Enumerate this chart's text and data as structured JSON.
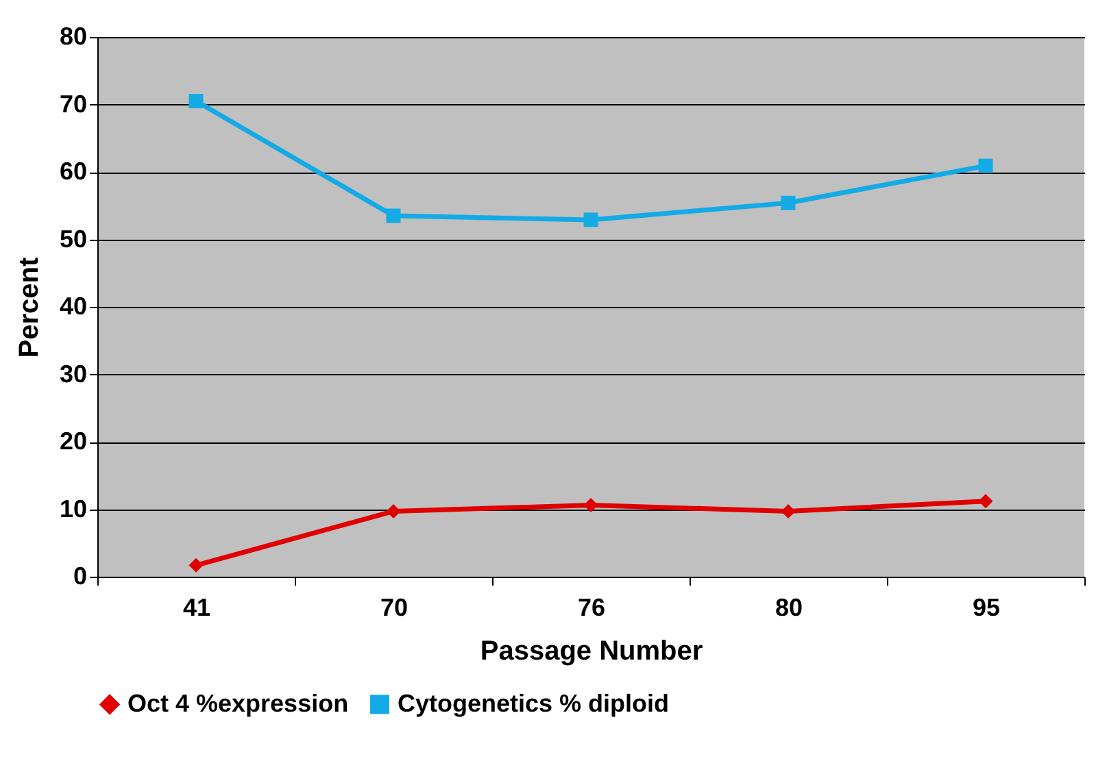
{
  "chart_data": {
    "type": "line",
    "xlabel": "Passage Number",
    "ylabel": "Percent",
    "categories": [
      "41",
      "70",
      "76",
      "80",
      "95"
    ],
    "series": [
      {
        "name": "Oct 4 %expression",
        "color": "#e00000",
        "marker": "diamond",
        "values": [
          1.7,
          9.7,
          10.6,
          9.7,
          11.2
        ]
      },
      {
        "name": "Cytogenetics % diploid",
        "color": "#14aae6",
        "marker": "square",
        "values": [
          70.5,
          53.5,
          52.9,
          55.4,
          60.9
        ]
      }
    ],
    "ylim": [
      0,
      80
    ],
    "yticks": [
      0,
      10,
      20,
      30,
      40,
      50,
      60,
      70,
      80
    ],
    "grid": "y",
    "legend": "bottom"
  }
}
